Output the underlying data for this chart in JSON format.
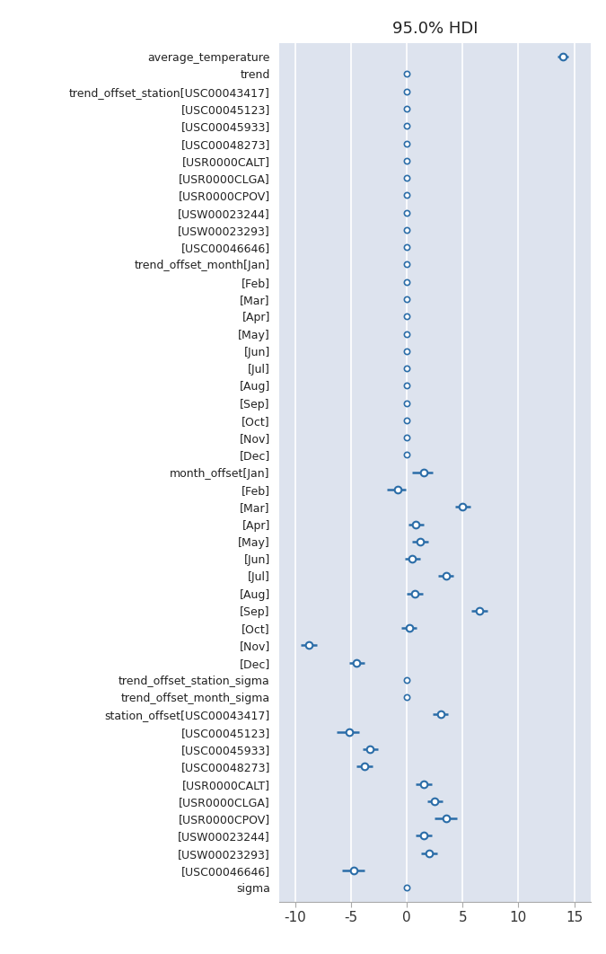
{
  "title": "95.0% HDI",
  "fig_bg_color": "#ffffff",
  "plot_bg_color": "#dde3ee",
  "point_color": "#2b6da8",
  "line_color": "#2b6da8",
  "grid_color": "#ffffff",
  "xlim": [
    -11.5,
    16.5
  ],
  "xticks": [
    -10,
    -5,
    0,
    5,
    10,
    15
  ],
  "rows": [
    {
      "label": "average_temperature",
      "mean": 14.0,
      "lo": 13.5,
      "hi": 14.5,
      "has_interval": true
    },
    {
      "label": "trend",
      "mean": 0.0,
      "lo": 0.0,
      "hi": 0.0,
      "has_interval": false
    },
    {
      "label": "trend_offset_station[USC00043417]",
      "mean": 0.0,
      "lo": 0.0,
      "hi": 0.0,
      "has_interval": false
    },
    {
      "label": "[USC00045123]",
      "mean": 0.0,
      "lo": 0.0,
      "hi": 0.0,
      "has_interval": false
    },
    {
      "label": "[USC00045933]",
      "mean": 0.0,
      "lo": 0.0,
      "hi": 0.0,
      "has_interval": false
    },
    {
      "label": "[USC00048273]",
      "mean": 0.0,
      "lo": 0.0,
      "hi": 0.0,
      "has_interval": false
    },
    {
      "label": "[USR0000CALT]",
      "mean": 0.0,
      "lo": 0.0,
      "hi": 0.0,
      "has_interval": false
    },
    {
      "label": "[USR0000CLGA]",
      "mean": 0.0,
      "lo": 0.0,
      "hi": 0.0,
      "has_interval": false
    },
    {
      "label": "[USR0000CPOV]",
      "mean": 0.0,
      "lo": 0.0,
      "hi": 0.0,
      "has_interval": false
    },
    {
      "label": "[USW00023244]",
      "mean": 0.0,
      "lo": 0.0,
      "hi": 0.0,
      "has_interval": false
    },
    {
      "label": "[USW00023293]",
      "mean": 0.0,
      "lo": 0.0,
      "hi": 0.0,
      "has_interval": false
    },
    {
      "label": "[USC00046646]",
      "mean": 0.0,
      "lo": 0.0,
      "hi": 0.0,
      "has_interval": false
    },
    {
      "label": "trend_offset_month[Jan]",
      "mean": 0.0,
      "lo": 0.0,
      "hi": 0.0,
      "has_interval": false
    },
    {
      "label": "[Feb]",
      "mean": 0.0,
      "lo": 0.0,
      "hi": 0.0,
      "has_interval": false
    },
    {
      "label": "[Mar]",
      "mean": 0.0,
      "lo": 0.0,
      "hi": 0.0,
      "has_interval": false
    },
    {
      "label": "[Apr]",
      "mean": 0.0,
      "lo": 0.0,
      "hi": 0.0,
      "has_interval": false
    },
    {
      "label": "[May]",
      "mean": 0.0,
      "lo": 0.0,
      "hi": 0.0,
      "has_interval": false
    },
    {
      "label": "[Jun]",
      "mean": 0.0,
      "lo": 0.0,
      "hi": 0.0,
      "has_interval": false
    },
    {
      "label": "[Jul]",
      "mean": 0.0,
      "lo": 0.0,
      "hi": 0.0,
      "has_interval": false
    },
    {
      "label": "[Aug]",
      "mean": 0.0,
      "lo": 0.0,
      "hi": 0.0,
      "has_interval": false
    },
    {
      "label": "[Sep]",
      "mean": 0.0,
      "lo": 0.0,
      "hi": 0.0,
      "has_interval": false
    },
    {
      "label": "[Oct]",
      "mean": 0.0,
      "lo": 0.0,
      "hi": 0.0,
      "has_interval": false
    },
    {
      "label": "[Nov]",
      "mean": 0.0,
      "lo": 0.0,
      "hi": 0.0,
      "has_interval": false
    },
    {
      "label": "[Dec]",
      "mean": 0.0,
      "lo": 0.0,
      "hi": 0.0,
      "has_interval": false
    },
    {
      "label": "month_offset[Jan]",
      "mean": 1.5,
      "lo": 0.5,
      "hi": 2.3,
      "has_interval": true
    },
    {
      "label": "[Feb]",
      "mean": -0.8,
      "lo": -1.8,
      "hi": -0.1,
      "has_interval": true
    },
    {
      "label": "[Mar]",
      "mean": 5.0,
      "lo": 4.3,
      "hi": 5.7,
      "has_interval": true
    },
    {
      "label": "[Apr]",
      "mean": 0.8,
      "lo": 0.1,
      "hi": 1.5,
      "has_interval": true
    },
    {
      "label": "[May]",
      "mean": 1.2,
      "lo": 0.5,
      "hi": 1.9,
      "has_interval": true
    },
    {
      "label": "[Jun]",
      "mean": 0.5,
      "lo": -0.2,
      "hi": 1.2,
      "has_interval": true
    },
    {
      "label": "[Jul]",
      "mean": 3.5,
      "lo": 2.8,
      "hi": 4.2,
      "has_interval": true
    },
    {
      "label": "[Aug]",
      "mean": 0.7,
      "lo": 0.0,
      "hi": 1.4,
      "has_interval": true
    },
    {
      "label": "[Sep]",
      "mean": 6.5,
      "lo": 5.8,
      "hi": 7.2,
      "has_interval": true
    },
    {
      "label": "[Oct]",
      "mean": 0.2,
      "lo": -0.5,
      "hi": 0.9,
      "has_interval": true
    },
    {
      "label": "[Nov]",
      "mean": -8.8,
      "lo": -9.5,
      "hi": -8.1,
      "has_interval": true
    },
    {
      "label": "[Dec]",
      "mean": -4.5,
      "lo": -5.2,
      "hi": -3.8,
      "has_interval": true
    },
    {
      "label": "trend_offset_station_sigma",
      "mean": 0.0,
      "lo": 0.0,
      "hi": 0.0,
      "has_interval": false
    },
    {
      "label": "trend_offset_month_sigma",
      "mean": 0.0,
      "lo": 0.0,
      "hi": 0.0,
      "has_interval": false
    },
    {
      "label": "station_offset[USC00043417]",
      "mean": 3.0,
      "lo": 2.3,
      "hi": 3.7,
      "has_interval": true
    },
    {
      "label": "[USC00045123]",
      "mean": -5.2,
      "lo": -6.3,
      "hi": -4.3,
      "has_interval": true
    },
    {
      "label": "[USC00045933]",
      "mean": -3.3,
      "lo": -4.0,
      "hi": -2.6,
      "has_interval": true
    },
    {
      "label": "[USC00048273]",
      "mean": -3.8,
      "lo": -4.5,
      "hi": -3.1,
      "has_interval": true
    },
    {
      "label": "[USR0000CALT]",
      "mean": 1.5,
      "lo": 0.8,
      "hi": 2.2,
      "has_interval": true
    },
    {
      "label": "[USR0000CLGA]",
      "mean": 2.5,
      "lo": 1.8,
      "hi": 3.2,
      "has_interval": true
    },
    {
      "label": "[USR0000CPOV]",
      "mean": 3.5,
      "lo": 2.5,
      "hi": 4.5,
      "has_interval": true
    },
    {
      "label": "[USW00023244]",
      "mean": 1.5,
      "lo": 0.8,
      "hi": 2.2,
      "has_interval": true
    },
    {
      "label": "[USW00023293]",
      "mean": 2.0,
      "lo": 1.3,
      "hi": 2.7,
      "has_interval": true
    },
    {
      "label": "[USC00046646]",
      "mean": -4.8,
      "lo": -5.8,
      "hi": -3.8,
      "has_interval": true
    },
    {
      "label": "sigma",
      "mean": 0.0,
      "lo": 0.0,
      "hi": 0.0,
      "has_interval": false
    }
  ]
}
